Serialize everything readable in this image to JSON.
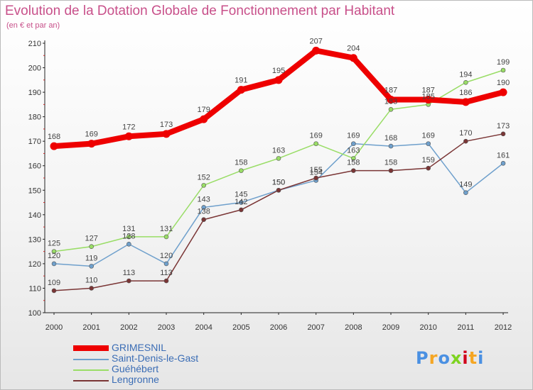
{
  "title": "Evolution de la Dotation Globale de Fonctionnement par Habitant",
  "subtitle": "(en € et par an)",
  "logo": "Proxiti",
  "chart_data": {
    "type": "line",
    "title": "Evolution de la Dotation Globale de Fonctionnement par Habitant",
    "subtitle": "(en € et par an)",
    "x": [
      "2000",
      "2001",
      "2002",
      "2003",
      "2004",
      "2005",
      "2006",
      "2007",
      "2008",
      "2009",
      "2010",
      "2011",
      "2012"
    ],
    "ylim": [
      100,
      210
    ],
    "yticks": [
      100,
      110,
      120,
      130,
      140,
      150,
      160,
      170,
      180,
      190,
      200,
      210
    ],
    "grid": false,
    "legend_position": "bottom-left",
    "series": [
      {
        "name": "GRIMESNIL",
        "color": "#ee0000",
        "values": [
          168,
          169,
          172,
          173,
          179,
          191,
          195,
          207,
          204,
          187,
          187,
          186,
          190
        ]
      },
      {
        "name": "Saint-Denis-le-Gast",
        "color": "#6fa0cc",
        "values": [
          120,
          119,
          128,
          120,
          143,
          145,
          150,
          154,
          169,
          168,
          169,
          149,
          161
        ]
      },
      {
        "name": "Guéhébert",
        "color": "#99dd66",
        "values": [
          125,
          127,
          131,
          131,
          152,
          158,
          163,
          169,
          163,
          183,
          185,
          194,
          199
        ]
      },
      {
        "name": "Lengronne",
        "color": "#7a3535",
        "values": [
          109,
          110,
          113,
          113,
          138,
          142,
          150,
          155,
          158,
          158,
          159,
          170,
          173
        ]
      }
    ]
  }
}
